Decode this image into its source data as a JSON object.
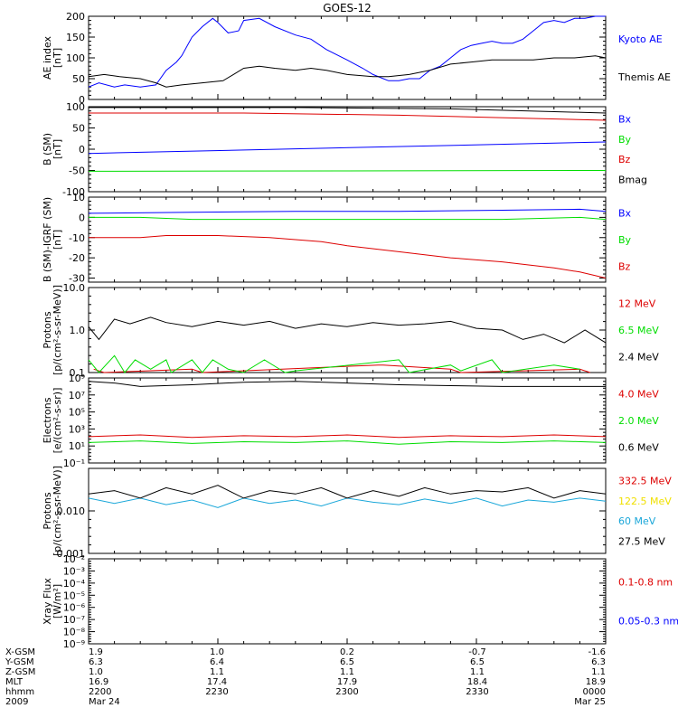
{
  "title": "GOES-12",
  "colors": {
    "black": "#000000",
    "blue": "#0000ff",
    "green": "#00dd00",
    "red": "#dd0000",
    "cyan": "#1aa7d9",
    "yellow": "#f0e000"
  },
  "chart_data": [
    {
      "type": "line",
      "ylabel": "AE index\n[nT]",
      "ylim": [
        0,
        200
      ],
      "yticks": [
        "0",
        "50",
        "100",
        "150",
        "200"
      ],
      "ytickvals": [
        0,
        50,
        100,
        150,
        200
      ],
      "log": false,
      "legend": [
        {
          "label": "Kyoto AE",
          "color": "blue"
        },
        {
          "label": "Themis AE",
          "color": "black"
        }
      ],
      "series": [
        {
          "name": "Kyoto AE",
          "color": "blue",
          "x": [
            0,
            0.02,
            0.05,
            0.07,
            0.1,
            0.13,
            0.15,
            0.17,
            0.18,
            0.2,
            0.22,
            0.24,
            0.25,
            0.27,
            0.29,
            0.3,
            0.33,
            0.36,
            0.4,
            0.43,
            0.46,
            0.5,
            0.53,
            0.55,
            0.57,
            0.58,
            0.6,
            0.62,
            0.64,
            0.66,
            0.68,
            0.7,
            0.72,
            0.74,
            0.76,
            0.78,
            0.8,
            0.82,
            0.84,
            0.86,
            0.88,
            0.9,
            0.92,
            0.94,
            0.96,
            0.98,
            1
          ],
          "y": [
            30,
            40,
            30,
            35,
            30,
            35,
            70,
            90,
            105,
            150,
            175,
            195,
            185,
            160,
            165,
            190,
            195,
            175,
            155,
            145,
            120,
            95,
            75,
            60,
            50,
            45,
            45,
            50,
            50,
            70,
            80,
            100,
            120,
            130,
            135,
            140,
            135,
            135,
            145,
            165,
            185,
            190,
            185,
            195,
            195,
            200,
            205
          ]
        },
        {
          "name": "Themis AE",
          "color": "black",
          "x": [
            0,
            0.03,
            0.06,
            0.1,
            0.13,
            0.15,
            0.18,
            0.22,
            0.26,
            0.28,
            0.3,
            0.33,
            0.36,
            0.4,
            0.43,
            0.46,
            0.5,
            0.55,
            0.58,
            0.62,
            0.66,
            0.7,
            0.74,
            0.78,
            0.82,
            0.86,
            0.9,
            0.94,
            0.98,
            1
          ],
          "y": [
            55,
            60,
            55,
            50,
            40,
            30,
            35,
            40,
            45,
            60,
            75,
            80,
            75,
            70,
            75,
            70,
            60,
            55,
            55,
            60,
            70,
            85,
            90,
            95,
            95,
            95,
            100,
            100,
            105,
            100
          ]
        }
      ]
    },
    {
      "type": "line",
      "ylabel": "B (SM)\n[nT]",
      "ylim": [
        -100,
        100
      ],
      "yticks": [
        "-100",
        "-50",
        "0",
        "50",
        "100"
      ],
      "ytickvals": [
        -100,
        -50,
        0,
        50,
        100
      ],
      "log": false,
      "legend": [
        {
          "label": "Bx",
          "color": "blue"
        },
        {
          "label": "By",
          "color": "green"
        },
        {
          "label": "Bz",
          "color": "red"
        },
        {
          "label": "Bmag",
          "color": "black"
        }
      ],
      "series": [
        {
          "name": "Bx",
          "color": "blue",
          "x": [
            0,
            1
          ],
          "y": [
            -10,
            17
          ]
        },
        {
          "name": "By",
          "color": "green",
          "x": [
            0,
            1
          ],
          "y": [
            -52,
            -50
          ]
        },
        {
          "name": "Bz",
          "color": "red",
          "x": [
            0,
            0.3,
            0.6,
            1
          ],
          "y": [
            85,
            85,
            80,
            68
          ]
        },
        {
          "name": "Bmag",
          "color": "black",
          "x": [
            0,
            0.4,
            0.7,
            1
          ],
          "y": [
            98,
            98,
            95,
            85
          ]
        }
      ]
    },
    {
      "type": "line",
      "ylabel": "B (SM)-IGRF (SM)\n[nT]",
      "ylim": [
        -32,
        10
      ],
      "yticks": [
        "-30",
        "-20",
        "-10",
        "0",
        "10"
      ],
      "ytickvals": [
        -30,
        -20,
        -10,
        0,
        10
      ],
      "log": false,
      "legend": [
        {
          "label": "Bx",
          "color": "blue"
        },
        {
          "label": "By",
          "color": "green"
        },
        {
          "label": "Bz",
          "color": "red"
        }
      ],
      "series": [
        {
          "name": "Bx",
          "color": "blue",
          "x": [
            0,
            0.2,
            0.4,
            0.6,
            0.8,
            0.95,
            1
          ],
          "y": [
            2,
            2.5,
            3,
            3,
            3.5,
            4,
            3
          ]
        },
        {
          "name": "By",
          "color": "green",
          "x": [
            0,
            0.1,
            0.2,
            0.3,
            0.4,
            0.6,
            0.8,
            0.95,
            1
          ],
          "y": [
            0,
            0,
            -1,
            -1,
            -1,
            -1,
            -1,
            0,
            -1
          ]
        },
        {
          "name": "Bz",
          "color": "red",
          "x": [
            0,
            0.1,
            0.15,
            0.25,
            0.35,
            0.45,
            0.5,
            0.6,
            0.7,
            0.8,
            0.9,
            0.95,
            1
          ],
          "y": [
            -10,
            -10,
            -9,
            -9,
            -10,
            -12,
            -14,
            -17,
            -20,
            -22,
            -25,
            -27,
            -30
          ]
        }
      ]
    },
    {
      "type": "line",
      "ylabel": "Protons\n[p/(cm²-s-sr-MeV)]",
      "ylim": [
        0.1,
        10
      ],
      "yticks": [
        "0.1",
        "1.0",
        "10.0"
      ],
      "ytickvals": [
        0.1,
        1,
        10
      ],
      "log": true,
      "legend": [
        {
          "label": "12 MeV",
          "color": "red"
        },
        {
          "label": "6.5 MeV",
          "color": "green"
        },
        {
          "label": "2.4 MeV",
          "color": "black"
        }
      ],
      "series": [
        {
          "name": "12 MeV",
          "color": "red",
          "x": [
            0.01,
            0.03,
            0.2,
            0.22,
            0.56,
            0.57,
            0.7,
            0.72,
            0.95,
            0.97
          ],
          "y": [
            0.12,
            0.1,
            0.12,
            0.1,
            0.15,
            0.15,
            0.12,
            0.1,
            0.12,
            0.1
          ]
        },
        {
          "name": "6.5 MeV",
          "color": "green",
          "x": [
            0,
            0.02,
            0.05,
            0.07,
            0.09,
            0.12,
            0.15,
            0.16,
            0.2,
            0.22,
            0.24,
            0.27,
            0.3,
            0.34,
            0.38,
            0.4,
            0.6,
            0.62,
            0.7,
            0.72,
            0.78,
            0.8,
            0.9,
            0.95
          ],
          "y": [
            0.2,
            0.1,
            0.25,
            0.1,
            0.2,
            0.12,
            0.2,
            0.1,
            0.2,
            0.1,
            0.2,
            0.12,
            0.1,
            0.2,
            0.1,
            0.11,
            0.2,
            0.1,
            0.15,
            0.11,
            0.2,
            0.1,
            0.15,
            0.12
          ]
        },
        {
          "name": "2.4 MeV",
          "color": "black",
          "x": [
            0,
            0.02,
            0.05,
            0.08,
            0.12,
            0.15,
            0.2,
            0.25,
            0.3,
            0.35,
            0.4,
            0.45,
            0.5,
            0.55,
            0.6,
            0.65,
            0.7,
            0.75,
            0.8,
            0.84,
            0.88,
            0.92,
            0.96,
            1
          ],
          "y": [
            1.2,
            0.6,
            1.8,
            1.4,
            2,
            1.5,
            1.2,
            1.6,
            1.3,
            1.6,
            1.1,
            1.4,
            1.2,
            1.5,
            1.3,
            1.4,
            1.6,
            1.1,
            1,
            0.6,
            0.8,
            0.5,
            1,
            0.5
          ]
        }
      ]
    },
    {
      "type": "line",
      "ylabel": "Electrons\n[e/(cm²-s-sr)]",
      "ylim": [
        -1,
        9
      ],
      "yticks": [
        "10⁻¹",
        "10¹",
        "10³",
        "10⁵",
        "10⁷",
        "10⁹"
      ],
      "ytickvals": [
        -1,
        1,
        3,
        5,
        7,
        9
      ],
      "log": true,
      "legend": [
        {
          "label": "4.0 MeV",
          "color": "red"
        },
        {
          "label": "2.0 MeV",
          "color": "green"
        },
        {
          "label": "0.6 MeV",
          "color": "black"
        }
      ],
      "series": [
        {
          "name": "4.0 MeV",
          "color": "red",
          "x": [
            0,
            0.1,
            0.2,
            0.3,
            0.4,
            0.5,
            0.6,
            0.7,
            0.8,
            0.9,
            1
          ],
          "y": [
            2.1,
            2.3,
            2.0,
            2.2,
            2.1,
            2.3,
            2.0,
            2.2,
            2.1,
            2.3,
            2.1
          ]
        },
        {
          "name": "2.0 MeV",
          "color": "green",
          "x": [
            0,
            0.1,
            0.2,
            0.3,
            0.4,
            0.5,
            0.6,
            0.7,
            0.8,
            0.9,
            1
          ],
          "y": [
            1.4,
            1.6,
            1.3,
            1.5,
            1.4,
            1.6,
            1.2,
            1.5,
            1.4,
            1.6,
            1.4
          ]
        },
        {
          "name": "0.6 MeV",
          "color": "black",
          "x": [
            0,
            0.05,
            0.1,
            0.2,
            0.3,
            0.4,
            0.5,
            0.6,
            0.7,
            0.8,
            0.9,
            1
          ],
          "y": [
            8.6,
            8.4,
            8.0,
            8.2,
            8.5,
            8.6,
            8.4,
            8.2,
            8.1,
            8.0,
            8.0,
            8.0
          ]
        }
      ]
    },
    {
      "type": "line",
      "ylabel": "Protons\n[p/(cm²-s-sr-MeV)]",
      "ylim": [
        0.001,
        0.1
      ],
      "yticks": [
        "0.001",
        "0.010"
      ],
      "ytickvals": [
        0.001,
        0.01
      ],
      "log": true,
      "legend": [
        {
          "label": "332.5 MeV",
          "color": "red"
        },
        {
          "label": "122.5 MeV",
          "color": "yellow"
        },
        {
          "label": "60 MeV",
          "color": "cyan"
        },
        {
          "label": "27.5 MeV",
          "color": "black"
        }
      ],
      "series": [
        {
          "name": "60 MeV",
          "color": "cyan",
          "x": [
            0,
            0.05,
            0.1,
            0.15,
            0.2,
            0.25,
            0.3,
            0.35,
            0.4,
            0.45,
            0.5,
            0.55,
            0.6,
            0.65,
            0.7,
            0.75,
            0.8,
            0.85,
            0.9,
            0.95,
            1
          ],
          "y": [
            0.02,
            0.015,
            0.02,
            0.014,
            0.018,
            0.012,
            0.02,
            0.015,
            0.018,
            0.013,
            0.02,
            0.016,
            0.014,
            0.019,
            0.015,
            0.02,
            0.013,
            0.018,
            0.016,
            0.02,
            0.017
          ]
        },
        {
          "name": "27.5 MeV",
          "color": "black",
          "x": [
            0,
            0.05,
            0.1,
            0.15,
            0.2,
            0.25,
            0.3,
            0.35,
            0.4,
            0.45,
            0.5,
            0.55,
            0.6,
            0.65,
            0.7,
            0.75,
            0.8,
            0.85,
            0.9,
            0.95,
            1
          ],
          "y": [
            0.025,
            0.03,
            0.02,
            0.035,
            0.025,
            0.04,
            0.02,
            0.03,
            0.025,
            0.035,
            0.02,
            0.03,
            0.022,
            0.035,
            0.025,
            0.03,
            0.028,
            0.035,
            0.02,
            0.03,
            0.025
          ]
        }
      ]
    },
    {
      "type": "line",
      "ylabel": "Xray Flux\n[W/m²]",
      "ylim": [
        -9,
        -2
      ],
      "yticks": [
        "10⁻⁹",
        "10⁻⁸",
        "10⁻⁷",
        "10⁻⁶",
        "10⁻⁵",
        "10⁻⁴",
        "10⁻³",
        "10⁻²"
      ],
      "ytickvals": [
        -9,
        -8,
        -7,
        -6,
        -5,
        -4,
        -3,
        -2
      ],
      "log": true,
      "legend": [
        {
          "label": "0.1-0.8 nm",
          "color": "red"
        },
        {
          "label": "0.05-0.3 nm",
          "color": "blue"
        }
      ],
      "series": []
    }
  ],
  "footer": {
    "labels": [
      "X-GSM",
      "Y-GSM",
      "Z-GSM",
      "MLT",
      "hhmm",
      "2009"
    ],
    "columns": [
      [
        "1.9",
        "6.3",
        "1.0",
        "16.9",
        "2200",
        "Mar 24"
      ],
      [
        "1.0",
        "6.4",
        "1.1",
        "17.4",
        "2230",
        ""
      ],
      [
        "0.2",
        "6.5",
        "1.1",
        "17.9",
        "2300",
        ""
      ],
      [
        "-0.7",
        "6.5",
        "1.1",
        "18.4",
        "2330",
        ""
      ],
      [
        "-1.6",
        "6.3",
        "1.1",
        "18.9",
        "0000",
        "Mar 25"
      ]
    ]
  }
}
